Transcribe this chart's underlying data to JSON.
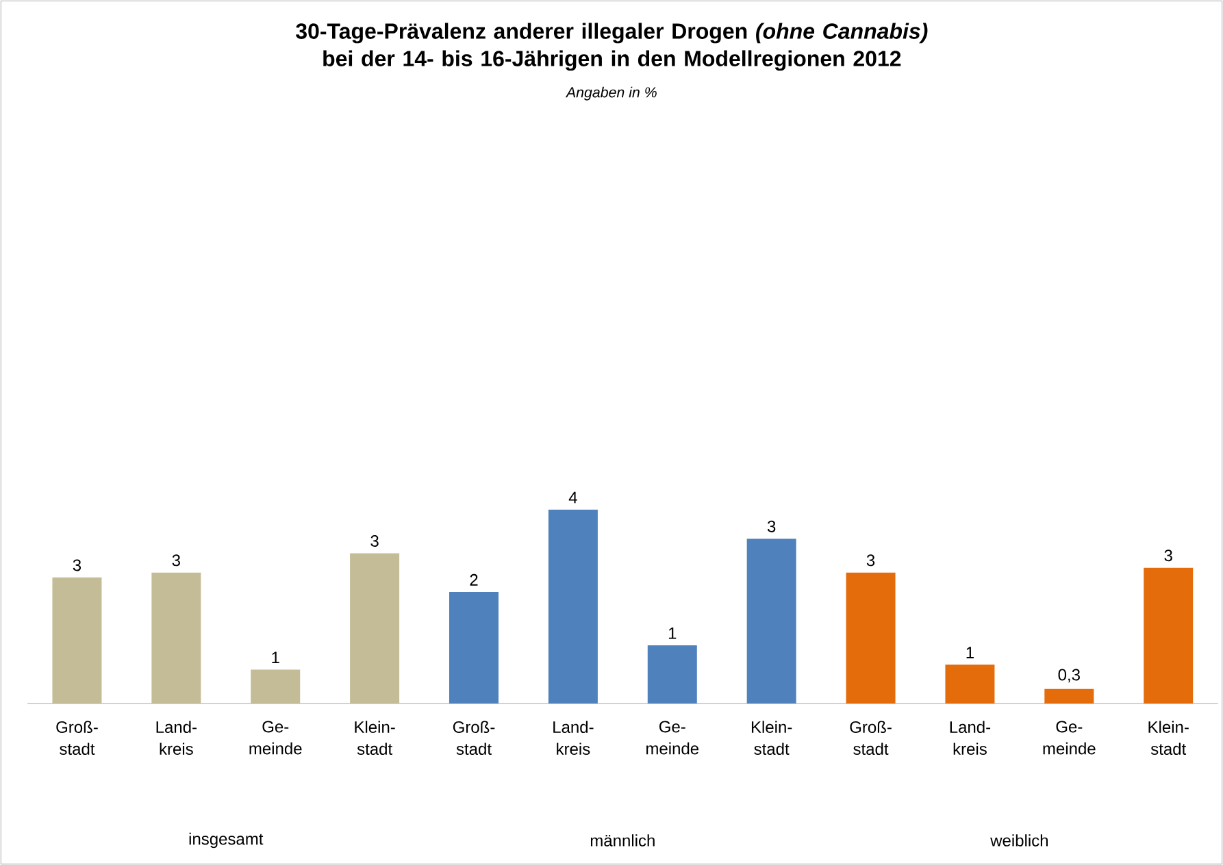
{
  "chart_data": {
    "type": "bar",
    "title": "30-Tage-Prävalenz anderer illegaler Drogen *(ohne Cannabis)* bei der 14- bis 16-Jährigen in den Modellregionen 2012",
    "subtitle": "Angaben in %",
    "categories": [
      "Groß- stadt",
      "Land- kreis",
      "Ge- meinde",
      "Klein- stadt",
      "Groß- stadt",
      "Land- kreis",
      "Ge- meinde",
      "Klein- stadt",
      "Groß- stadt",
      "Land- kreis",
      "Ge- meinde",
      "Klein- stadt"
    ],
    "values": [
      2.6,
      2.7,
      0.7,
      3.1,
      2.3,
      4.0,
      1.2,
      3.4,
      2.7,
      0.8,
      0.3,
      2.8
    ],
    "value_labels": [
      "3",
      "3",
      "1",
      "3",
      "2",
      "4",
      "1",
      "3",
      "3",
      "1",
      "0,3",
      "3"
    ],
    "colors": [
      "#c4bc96",
      "#c4bc96",
      "#c4bc96",
      "#c4bc96",
      "#4f81bd",
      "#4f81bd",
      "#4f81bd",
      "#4f81bd",
      "#e46c0a",
      "#e46c0a",
      "#e46c0a",
      "#e46c0a"
    ],
    "annotations": [
      "insgesamt",
      "männlich",
      "weiblich"
    ]
  }
}
